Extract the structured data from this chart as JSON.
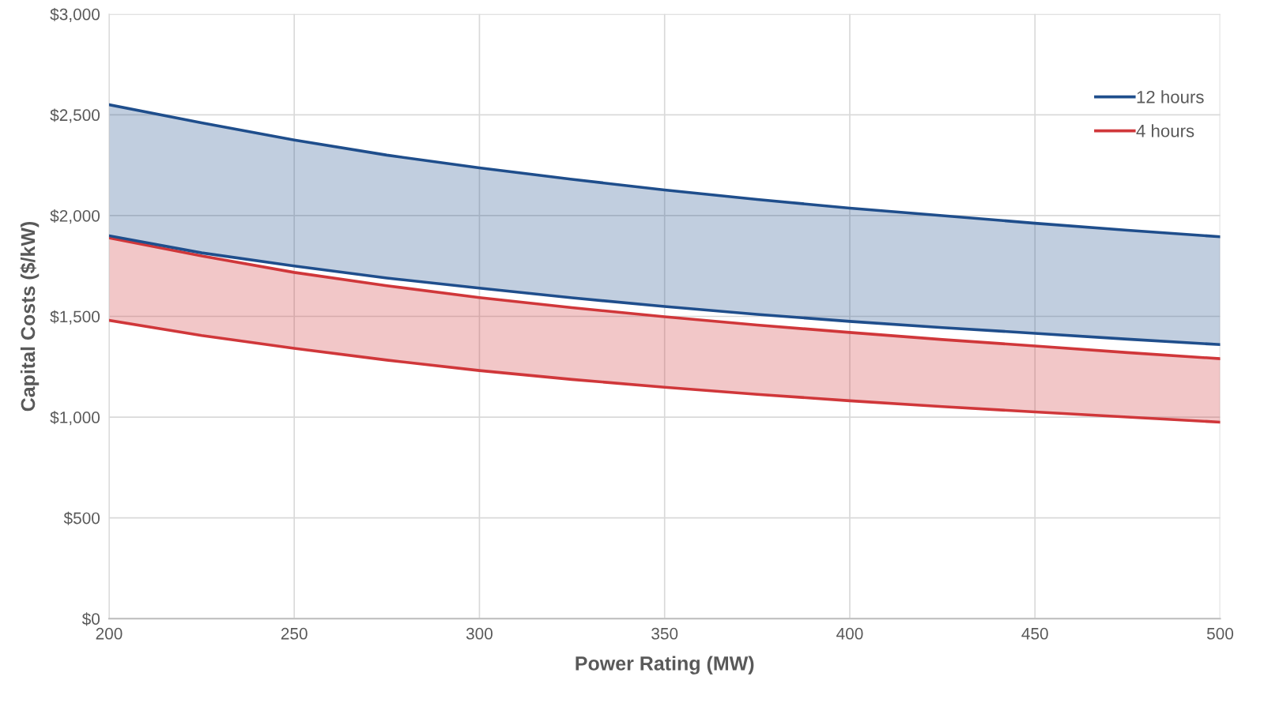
{
  "chart_data": {
    "type": "line",
    "xlabel": "Power Rating (MW)",
    "ylabel": "Capital Costs ($/kW)",
    "x": [
      200,
      225,
      250,
      275,
      300,
      325,
      350,
      375,
      400,
      425,
      450,
      475,
      500
    ],
    "series": [
      {
        "name": "12 hours",
        "color": "#1f4e8c",
        "values": [
          2550,
          2460,
          2375,
          2300,
          2237,
          2180,
          2127,
          2080,
          2037,
          2000,
          1962,
          1927,
          1895
        ],
        "upper": [
          2550,
          2460,
          2375,
          2300,
          2237,
          2180,
          2127,
          2080,
          2037,
          2000,
          1962,
          1927,
          1895
        ],
        "lower": [
          1900,
          1815,
          1750,
          1690,
          1640,
          1592,
          1549,
          1510,
          1475,
          1444,
          1416,
          1387,
          1360
        ]
      },
      {
        "name": "4 hours",
        "color": "#d0373a",
        "values": [
          1890,
          1800,
          1718,
          1652,
          1593,
          1543,
          1498,
          1457,
          1420,
          1385,
          1353,
          1320,
          1290
        ],
        "upper": [
          1890,
          1800,
          1718,
          1652,
          1593,
          1543,
          1498,
          1457,
          1420,
          1385,
          1353,
          1320,
          1290
        ],
        "lower": [
          1480,
          1405,
          1341,
          1283,
          1231,
          1187,
          1148,
          1113,
          1081,
          1052,
          1026,
          1000,
          975
        ]
      },
      {
        "color": "#1f4e8c",
        "values": [
          1900,
          1815,
          1750,
          1690,
          1640,
          1592,
          1549,
          1510,
          1475,
          1444,
          1416,
          1387,
          1360
        ]
      },
      {
        "color": "#d0373a",
        "values": [
          1480,
          1405,
          1341,
          1283,
          1231,
          1187,
          1148,
          1113,
          1081,
          1052,
          1026,
          1000,
          975
        ]
      }
    ],
    "xlim": [
      200,
      500
    ],
    "xticks": [
      200,
      250,
      300,
      350,
      400,
      450,
      500
    ],
    "ylim": [
      0,
      3000
    ],
    "yticks": [
      {
        "value": 0,
        "label": "$0"
      },
      {
        "value": 500,
        "label": "$500"
      },
      {
        "value": 1000,
        "label": "$1,000"
      },
      {
        "value": 1500,
        "label": "$1,500"
      },
      {
        "value": 2000,
        "label": "$2,000"
      },
      {
        "value": 2500,
        "label": "$2,500"
      },
      {
        "value": 3000,
        "label": "$3,000"
      }
    ],
    "grid": true,
    "legend": "top right",
    "marker": "none",
    "line_style": "solid"
  }
}
